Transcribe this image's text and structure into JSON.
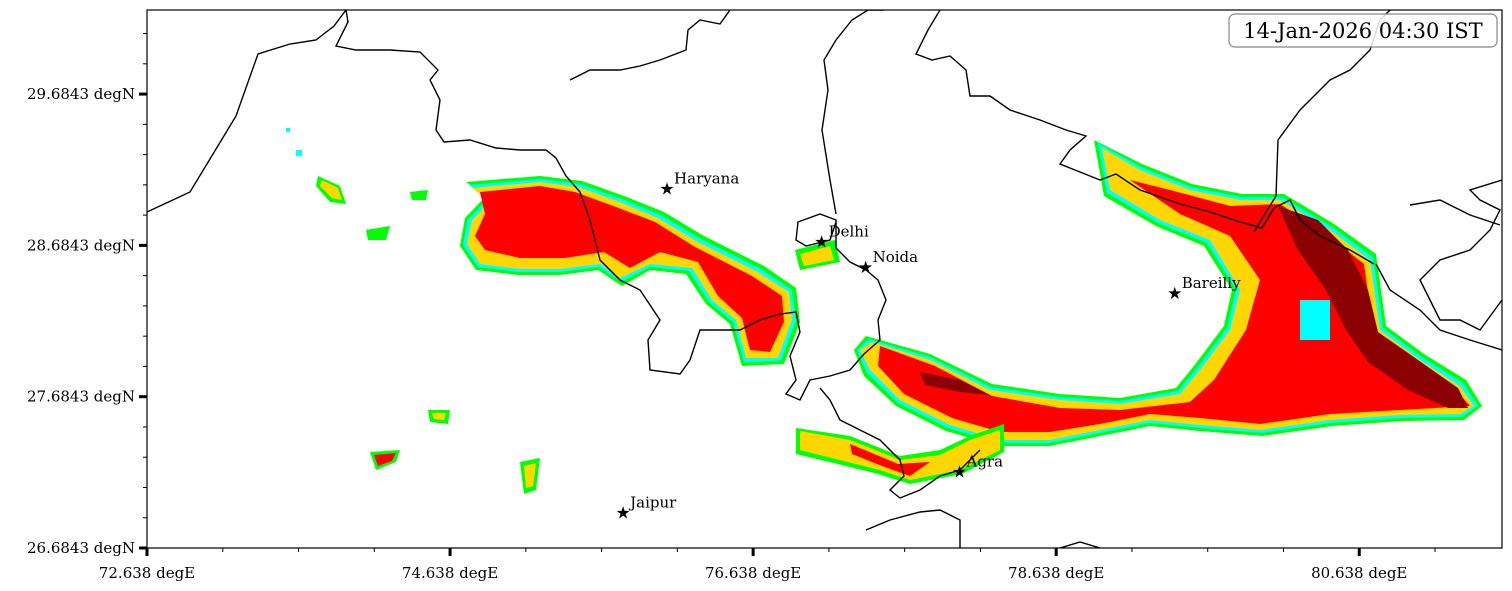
{
  "timestamp": "14-Jan-2026 04:30 IST",
  "axes": {
    "x_ticks": [
      "72.638 degE",
      "74.638 degE",
      "76.638 degE",
      "78.638 degE",
      "80.638 degE"
    ],
    "x_values": [
      72.638,
      74.638,
      76.638,
      78.638,
      80.638
    ],
    "y_ticks": [
      "26.6843 degN",
      "27.6843 degN",
      "28.6843 degN",
      "29.6843 degN"
    ],
    "y_values": [
      26.6843,
      27.6843,
      28.6843,
      29.6843
    ],
    "x_range": [
      72.638,
      81.58
    ],
    "y_range": [
      26.6843,
      30.24
    ]
  },
  "colors": {
    "level_1": "#00ff00",
    "level_2": "#00ffff",
    "level_3": "#ffd700",
    "level_4": "#ff0000",
    "level_5": "#8b0000",
    "borders": "#000000"
  },
  "cities": [
    {
      "name": "Haryana",
      "lon": 76.07,
      "lat": 29.06
    },
    {
      "name": "Delhi",
      "lon": 77.09,
      "lat": 28.71
    },
    {
      "name": "Noida",
      "lon": 77.38,
      "lat": 28.54
    },
    {
      "name": "Bareilly",
      "lon": 79.42,
      "lat": 28.37
    },
    {
      "name": "Agra",
      "lon": 78.0,
      "lat": 27.19
    },
    {
      "name": "Jaipur",
      "lon": 75.78,
      "lat": 26.92
    }
  ]
}
